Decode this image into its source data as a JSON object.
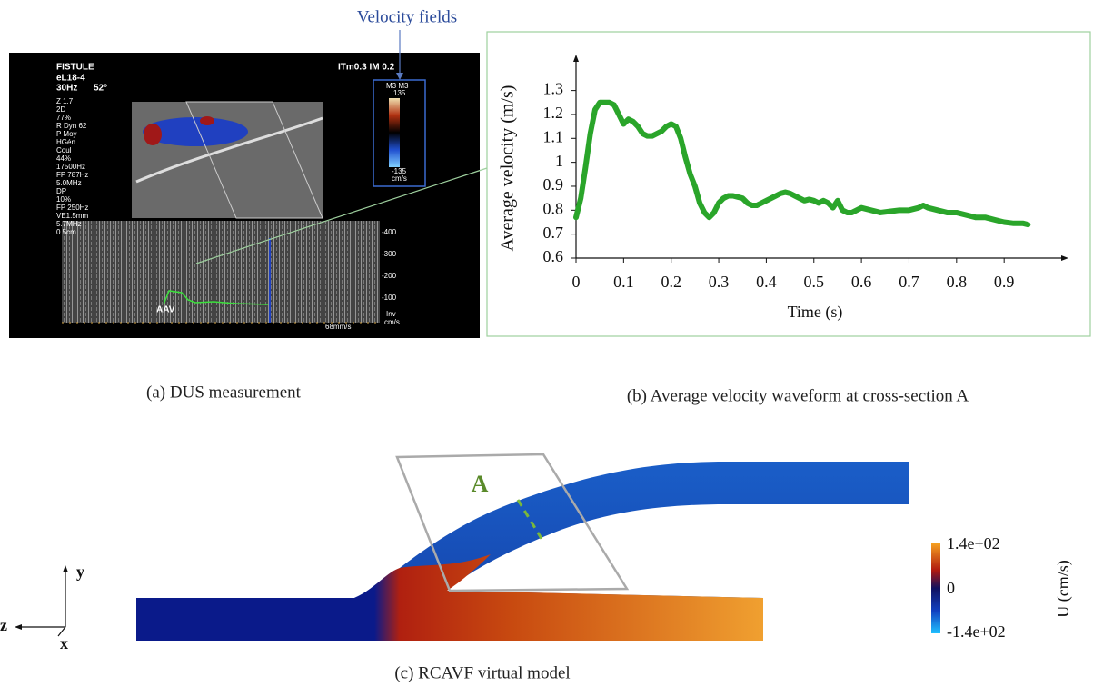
{
  "chart_data": {
    "type": "line",
    "title": "(b) Average velocity waveform at cross-section A",
    "x_label": "Time (s)",
    "y_label": "Average velocity (m/s)",
    "color": "#2aa52a",
    "x": [
      0,
      0.01,
      0.02,
      0.03,
      0.04,
      0.05,
      0.06,
      0.07,
      0.08,
      0.09,
      0.1,
      0.11,
      0.12,
      0.13,
      0.14,
      0.15,
      0.16,
      0.17,
      0.18,
      0.19,
      0.2,
      0.21,
      0.22,
      0.23,
      0.24,
      0.25,
      0.26,
      0.27,
      0.28,
      0.29,
      0.3,
      0.31,
      0.32,
      0.33,
      0.34,
      0.35,
      0.36,
      0.37,
      0.38,
      0.39,
      0.4,
      0.41,
      0.42,
      0.43,
      0.44,
      0.45,
      0.46,
      0.47,
      0.48,
      0.49,
      0.5,
      0.51,
      0.52,
      0.53,
      0.54,
      0.55,
      0.56,
      0.57,
      0.58,
      0.59,
      0.6,
      0.62,
      0.64,
      0.66,
      0.68,
      0.7,
      0.72,
      0.73,
      0.74,
      0.76,
      0.78,
      0.8,
      0.82,
      0.84,
      0.86,
      0.88,
      0.9,
      0.92,
      0.94,
      0.95
    ],
    "values": [
      0.77,
      0.85,
      0.98,
      1.12,
      1.22,
      1.25,
      1.25,
      1.25,
      1.24,
      1.2,
      1.16,
      1.18,
      1.17,
      1.15,
      1.12,
      1.11,
      1.11,
      1.12,
      1.13,
      1.15,
      1.16,
      1.15,
      1.1,
      1.02,
      0.95,
      0.9,
      0.83,
      0.79,
      0.77,
      0.79,
      0.83,
      0.85,
      0.86,
      0.86,
      0.855,
      0.85,
      0.83,
      0.82,
      0.82,
      0.83,
      0.84,
      0.85,
      0.86,
      0.87,
      0.875,
      0.87,
      0.86,
      0.85,
      0.84,
      0.845,
      0.84,
      0.83,
      0.84,
      0.83,
      0.81,
      0.84,
      0.8,
      0.79,
      0.79,
      0.8,
      0.81,
      0.8,
      0.79,
      0.795,
      0.8,
      0.8,
      0.81,
      0.82,
      0.81,
      0.8,
      0.79,
      0.79,
      0.78,
      0.77,
      0.77,
      0.76,
      0.75,
      0.745,
      0.745,
      0.74
    ],
    "xlim": [
      0,
      1.02
    ],
    "ylim": [
      0.6,
      1.42
    ],
    "xticks": [
      0,
      0.1,
      0.2,
      0.3,
      0.4,
      0.5,
      0.6,
      0.7,
      0.8,
      0.9
    ],
    "yticks": [
      0.6,
      0.7,
      0.8,
      0.9,
      1,
      1.1,
      1.2,
      1.3
    ]
  },
  "panel_a": {
    "caption": "(a) DUS measurement",
    "callout": "Velocity fields",
    "header": "FISTULE",
    "probe": "eL18-4",
    "frame_rate": "30Hz",
    "angle": "52°",
    "indices": "ITm0.3  IM 0.2",
    "settings": [
      "Z 1.7",
      "2D",
      "77%",
      "R Dyn 62",
      "P Moy",
      "HGén",
      "Coul",
      "44%",
      "17500Hz",
      "FP 787Hz",
      "5.0MHz",
      "DP",
      "10%",
      "FP 250Hz",
      "VE1.5mm",
      "5.7MHz",
      "0.5cm"
    ],
    "color_scale": {
      "title": "M3 M3",
      "max": "135",
      "min": "-135",
      "unit": "cm/s"
    },
    "spectrum_ticks": [
      "-400",
      "-300",
      "-200",
      "-100"
    ],
    "spectrum_unit": [
      "Inv",
      "cm/s"
    ],
    "sweep": "68mm/s",
    "trace_label": "AAV"
  },
  "panel_c": {
    "caption": "(c) RCAVF virtual model",
    "section_label": "A",
    "colorbar": {
      "title": "U (cm/s)",
      "max": "1.4e+02",
      "mid": "0",
      "min": "-1.4e+02"
    },
    "axes": {
      "y": "y",
      "z": "z",
      "x": "x"
    }
  }
}
